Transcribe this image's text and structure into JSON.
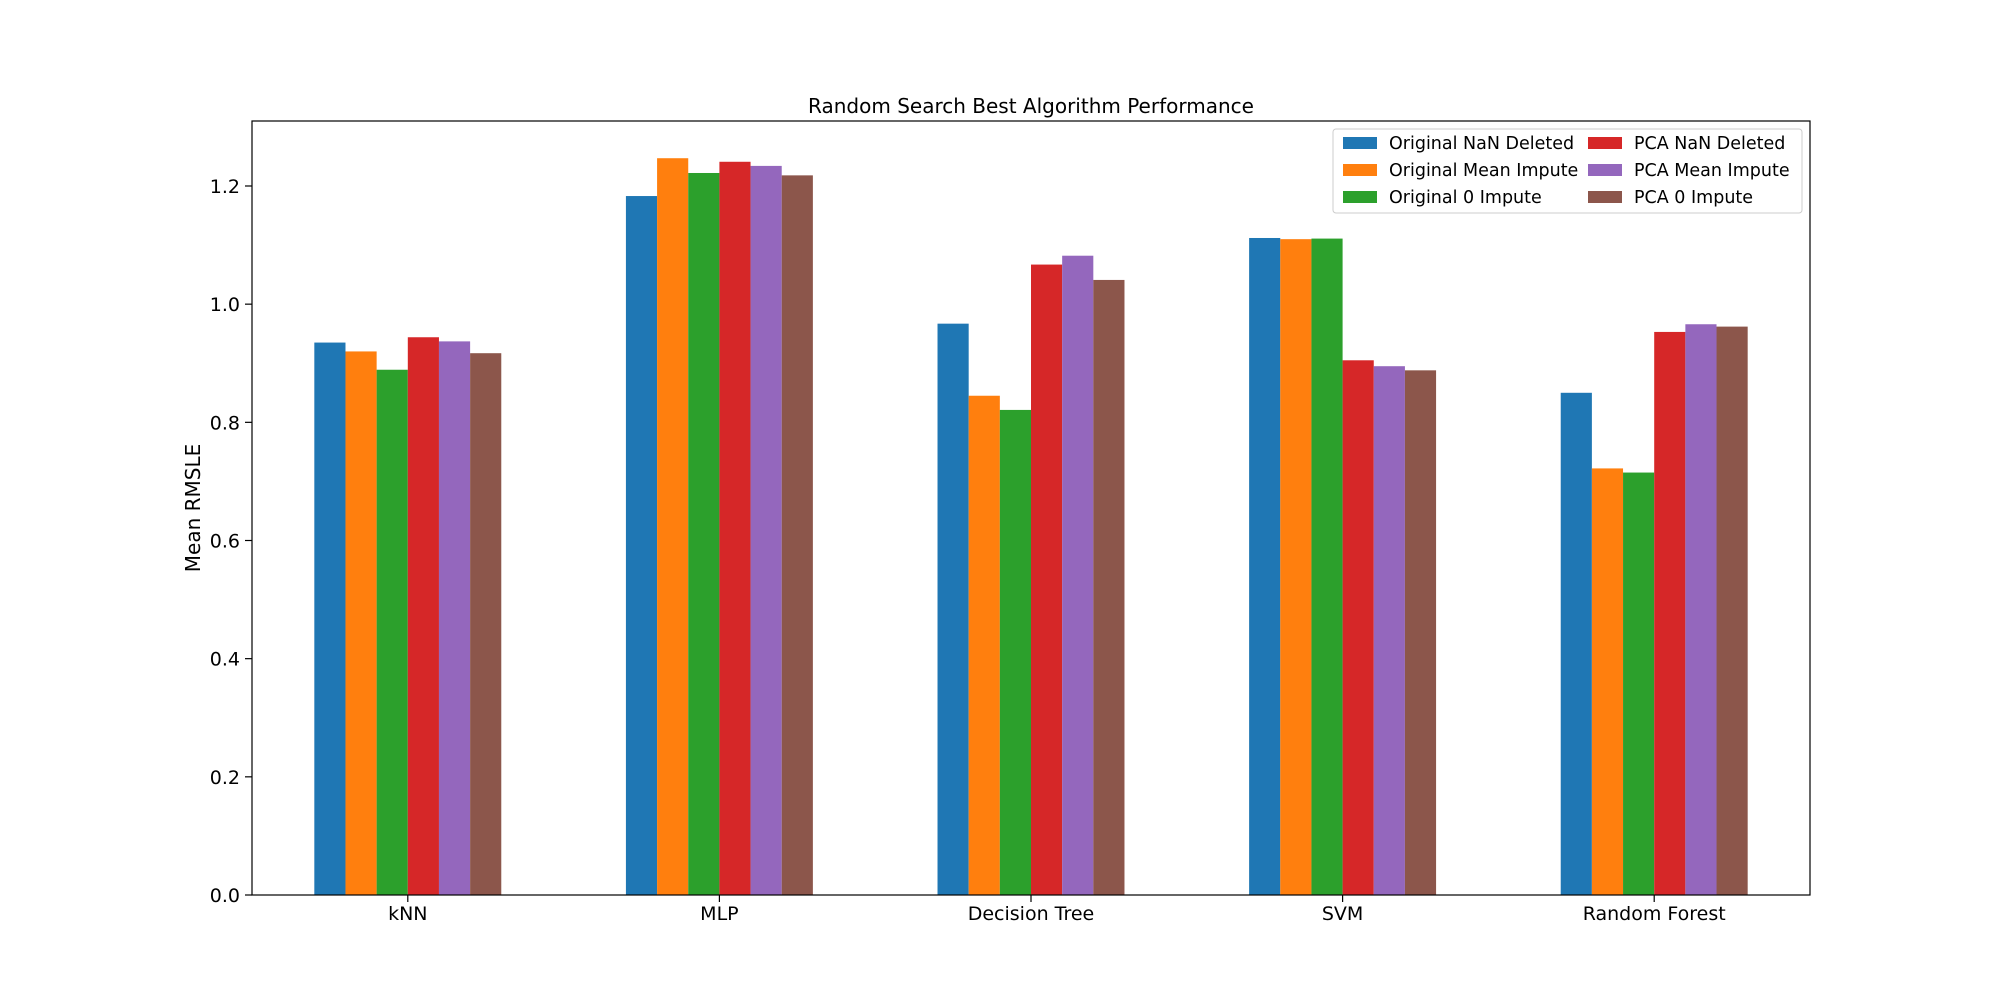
{
  "chart_data": {
    "type": "bar",
    "title": "Random Search Best Algorithm Performance",
    "xlabel": "",
    "ylabel": "Mean RMSLE",
    "ylim": [
      0,
      1.31
    ],
    "yticks": [
      "0.0",
      "0.2",
      "0.4",
      "0.6",
      "0.8",
      "1.0",
      "1.2"
    ],
    "grid": false,
    "legend_position": "top-right",
    "categories": [
      "kNN",
      "MLP",
      "Decision Tree",
      "SVM",
      "Random Forest"
    ],
    "series": [
      {
        "name": "Original NaN Deleted",
        "color": "#1f77b4",
        "values": [
          0.935,
          1.183,
          0.967,
          1.112,
          0.85
        ]
      },
      {
        "name": "Original Mean Impute",
        "color": "#ff7f0e",
        "values": [
          0.92,
          1.247,
          0.845,
          1.11,
          0.722
        ]
      },
      {
        "name": "Original 0 Impute",
        "color": "#2ca02c",
        "values": [
          0.889,
          1.222,
          0.821,
          1.111,
          0.715
        ]
      },
      {
        "name": "PCA NaN Deleted",
        "color": "#d62728",
        "values": [
          0.944,
          1.241,
          1.067,
          0.905,
          0.953
        ]
      },
      {
        "name": "PCA Mean Impute",
        "color": "#9467bd",
        "values": [
          0.937,
          1.234,
          1.082,
          0.895,
          0.966
        ]
      },
      {
        "name": "PCA 0 Impute",
        "color": "#8c564b",
        "values": [
          0.917,
          1.218,
          1.041,
          0.888,
          0.962
        ]
      }
    ]
  }
}
